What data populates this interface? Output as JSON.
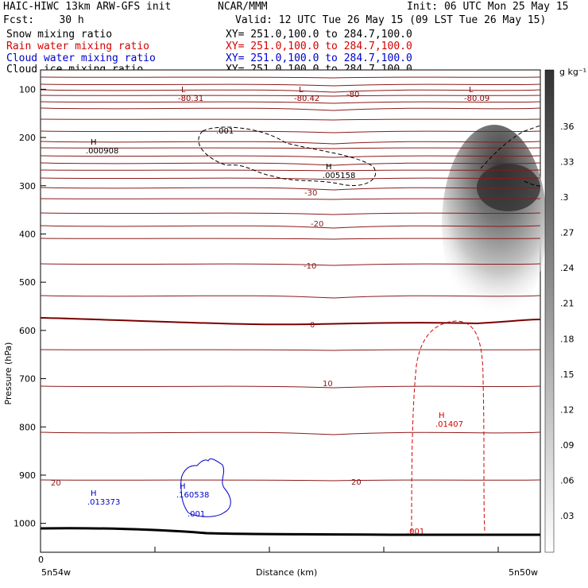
{
  "header": {
    "title_left": "HAIC-HIWC 13km ARW-GFS init",
    "org": "NCAR/MMM",
    "init": "Init: 06 UTC Mon 25 May 15",
    "fcst": "Fcst:    30 h",
    "valid": "Valid: 12 UTC Tue 26 May 15 (09 LST Tue 26 May 15)",
    "fields": [
      {
        "name": "Snow mixing ratio",
        "xy": "XY= 251.0,100.0 to 284.7,100.0",
        "color": "#000000"
      },
      {
        "name": "Rain water mixing ratio",
        "xy": "XY= 251.0,100.0 to 284.7,100.0",
        "color": "#d40000"
      },
      {
        "name": "Cloud water mixing ratio",
        "xy": "XY= 251.0,100.0 to 284.7,100.0",
        "color": "#0000cc"
      },
      {
        "name": "Cloud ice mixing ratio",
        "xy": "XY= 251.0,100.0 to 284.7,100.0",
        "color": "#000000"
      }
    ]
  },
  "chart_data": {
    "type": "cross-section",
    "ylabel": "Pressure (hPa)",
    "xlabel": "Distance (km)",
    "y_ticks": [
      100,
      200,
      300,
      400,
      500,
      600,
      700,
      800,
      900,
      1000
    ],
    "ylim": [
      50,
      1050
    ],
    "x_tick_label": "0",
    "x_left_label": "5n54w",
    "x_right_label": "5n50w",
    "colorbar": {
      "unit": "g kg⁻¹",
      "ticks": [
        ".03",
        ".06",
        ".09",
        ".12",
        ".15",
        ".18",
        ".21",
        ".24",
        ".27",
        ".3",
        ".33",
        ".36"
      ]
    },
    "temperature_labels": [
      "-30",
      "-20",
      "-10",
      "0",
      "10",
      "20",
      "20"
    ],
    "extrema": [
      {
        "kind": "L",
        "value": "-80.31",
        "color": "#8b0000"
      },
      {
        "kind": "L",
        "value": "-80.42",
        "color": "#8b0000"
      },
      {
        "kind": "L",
        "value": "-80.09",
        "color": "#8b0000"
      },
      {
        "kind": "",
        "value": "-80",
        "color": "#8b0000"
      },
      {
        "kind": "H",
        "value": ".000908",
        "color": "#000000"
      },
      {
        "kind": "",
        "value": ".001",
        "color": "#000000"
      },
      {
        "kind": "H",
        "value": ".005158",
        "color": "#000000"
      },
      {
        "kind": "H",
        "value": ".01407",
        "color": "#d40000"
      },
      {
        "kind": "",
        "value": ".001",
        "color": "#d40000"
      },
      {
        "kind": "H",
        "value": ".013373",
        "color": "#0000cc"
      },
      {
        "kind": "H",
        "value": ".160538",
        "color": "#0000cc"
      },
      {
        "kind": "",
        "value": ".001",
        "color": "#0000cc"
      }
    ]
  }
}
